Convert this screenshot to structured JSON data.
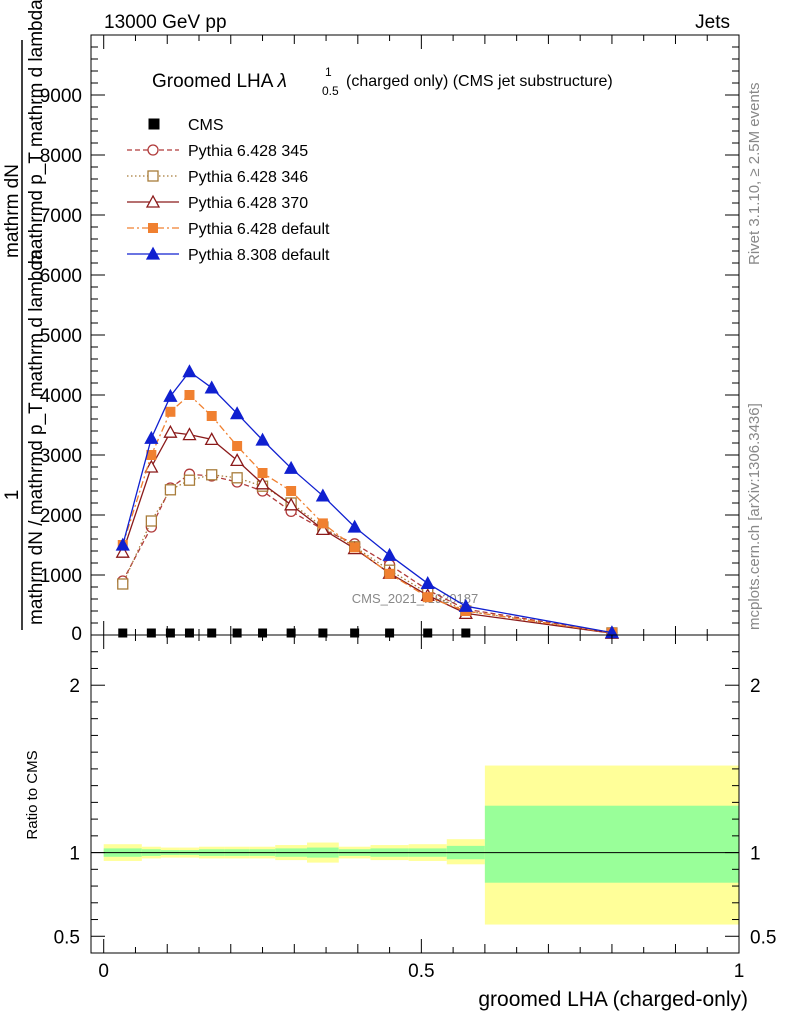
{
  "header": {
    "left": "13000 GeV pp",
    "right": "Jets"
  },
  "side_text": {
    "top": "Rivet 3.1.10, ≥ 2.5M events",
    "bottom": "mcplots.cern.ch [arXiv:1306.3436]"
  },
  "chart_data": [
    {
      "type": "line",
      "title_main": "Groomed LHA ",
      "title_lambda": "λ",
      "title_sup": "1",
      "title_sub": "0.5",
      "title_rest": "  (charged only) (CMS jet substructure)",
      "ylabel_top": "1",
      "ylabel_main": "mathrm dN / mathrmd p_T mathrm d lambda",
      "ylabel_num": "mathrm dN",
      "ylabel_den": "mathrmd p_T mathrm d lambda",
      "ylabel_sub": "T",
      "watermark": "CMS_2021_I1920187",
      "ylim": [
        0,
        10000
      ],
      "yticks": [
        1000,
        2000,
        3000,
        4000,
        5000,
        6000,
        7000,
        8000,
        9000
      ],
      "ytick_labels": [
        "1000",
        "2000",
        "3000",
        "4000",
        "5000",
        "6000",
        "7000",
        "8000",
        "9000"
      ],
      "xlim": [
        -0.02,
        1.0
      ],
      "legend_position": "top-left",
      "series": [
        {
          "name": "CMS",
          "style": "data-square",
          "color": "#000000",
          "x": [
            0.03,
            0.075,
            0.105,
            0.135,
            0.17,
            0.21,
            0.25,
            0.295,
            0.345,
            0.395,
            0.45,
            0.51,
            0.57
          ],
          "y": [
            0,
            0,
            0,
            0,
            0,
            0,
            0,
            0,
            0,
            0,
            0,
            0,
            0
          ]
        },
        {
          "name": "Pythia 6.428 345",
          "style": "dashed-open-circle",
          "color": "#b03a3a",
          "x": [
            0.03,
            0.075,
            0.105,
            0.135,
            0.17,
            0.21,
            0.25,
            0.295,
            0.345,
            0.395,
            0.45,
            0.51,
            0.57,
            0.8
          ],
          "y": [
            900,
            1800,
            2450,
            2680,
            2650,
            2550,
            2400,
            2060,
            1760,
            1520,
            1170,
            750,
            430,
            40
          ]
        },
        {
          "name": "Pythia 6.428 346",
          "style": "dotted-open-square",
          "color": "#a87c3a",
          "x": [
            0.03,
            0.075,
            0.105,
            0.135,
            0.17,
            0.21,
            0.25,
            0.295,
            0.345,
            0.395,
            0.45,
            0.51,
            0.57,
            0.8
          ],
          "y": [
            850,
            1900,
            2420,
            2580,
            2670,
            2620,
            2480,
            2200,
            1800,
            1470,
            1080,
            700,
            400,
            35
          ]
        },
        {
          "name": "Pythia 6.428 370",
          "style": "solid-open-triangle",
          "color": "#8b1a1a",
          "x": [
            0.03,
            0.075,
            0.105,
            0.135,
            0.17,
            0.21,
            0.25,
            0.295,
            0.345,
            0.395,
            0.45,
            0.51,
            0.57,
            0.8
          ],
          "y": [
            1380,
            2800,
            3380,
            3340,
            3260,
            2910,
            2520,
            2170,
            1760,
            1440,
            1030,
            660,
            360,
            30
          ]
        },
        {
          "name": "Pythia 6.428 default",
          "style": "dashdot-filled-square",
          "color": "#f08030",
          "x": [
            0.03,
            0.075,
            0.105,
            0.135,
            0.17,
            0.21,
            0.25,
            0.295,
            0.345,
            0.395,
            0.45,
            0.51,
            0.57,
            0.8
          ],
          "y": [
            1500,
            3000,
            3720,
            4000,
            3650,
            3150,
            2700,
            2400,
            1860,
            1460,
            1020,
            630,
            400,
            35
          ]
        },
        {
          "name": "Pythia 8.308 default",
          "style": "solid-filled-triangle",
          "color": "#1020d0",
          "x": [
            0.03,
            0.075,
            0.105,
            0.135,
            0.17,
            0.21,
            0.25,
            0.295,
            0.345,
            0.395,
            0.45,
            0.51,
            0.57,
            0.8
          ],
          "y": [
            1500,
            3280,
            3980,
            4390,
            4120,
            3690,
            3250,
            2780,
            2320,
            1800,
            1330,
            860,
            480,
            40
          ]
        }
      ]
    },
    {
      "type": "area",
      "ylabel": "Ratio to CMS",
      "xlabel": "groomed LHA (charged-only)",
      "ylim": [
        0.4,
        2.3
      ],
      "yticks": [
        0.5,
        1,
        2
      ],
      "ytick_labels": [
        "0.5",
        "1",
        "2"
      ],
      "xlim": [
        -0.02,
        1.0
      ],
      "xticks": [
        0,
        0.5,
        1
      ],
      "xtick_labels": [
        "0",
        "0.5",
        "1"
      ],
      "reference_line": 1.0,
      "bins": [
        {
          "lo": 0.0,
          "hi": 0.06,
          "stat_lo": 0.975,
          "stat_hi": 1.025,
          "tot_lo": 0.95,
          "tot_hi": 1.05
        },
        {
          "lo": 0.06,
          "hi": 0.09,
          "stat_lo": 0.98,
          "stat_hi": 1.02,
          "tot_lo": 0.965,
          "tot_hi": 1.035
        },
        {
          "lo": 0.09,
          "hi": 0.12,
          "stat_lo": 0.985,
          "stat_hi": 1.015,
          "tot_lo": 0.97,
          "tot_hi": 1.03
        },
        {
          "lo": 0.12,
          "hi": 0.15,
          "stat_lo": 0.985,
          "stat_hi": 1.015,
          "tot_lo": 0.97,
          "tot_hi": 1.03
        },
        {
          "lo": 0.15,
          "hi": 0.19,
          "stat_lo": 0.98,
          "stat_hi": 1.02,
          "tot_lo": 0.965,
          "tot_hi": 1.035
        },
        {
          "lo": 0.19,
          "hi": 0.23,
          "stat_lo": 0.98,
          "stat_hi": 1.02,
          "tot_lo": 0.965,
          "tot_hi": 1.035
        },
        {
          "lo": 0.23,
          "hi": 0.27,
          "stat_lo": 0.98,
          "stat_hi": 1.02,
          "tot_lo": 0.965,
          "tot_hi": 1.035
        },
        {
          "lo": 0.27,
          "hi": 0.32,
          "stat_lo": 0.975,
          "stat_hi": 1.025,
          "tot_lo": 0.955,
          "tot_hi": 1.045
        },
        {
          "lo": 0.32,
          "hi": 0.37,
          "stat_lo": 0.97,
          "stat_hi": 1.03,
          "tot_lo": 0.94,
          "tot_hi": 1.06
        },
        {
          "lo": 0.37,
          "hi": 0.42,
          "stat_lo": 0.98,
          "stat_hi": 1.02,
          "tot_lo": 0.965,
          "tot_hi": 1.035
        },
        {
          "lo": 0.42,
          "hi": 0.48,
          "stat_lo": 0.975,
          "stat_hi": 1.025,
          "tot_lo": 0.955,
          "tot_hi": 1.045
        },
        {
          "lo": 0.48,
          "hi": 0.54,
          "stat_lo": 0.975,
          "stat_hi": 1.025,
          "tot_lo": 0.95,
          "tot_hi": 1.05
        },
        {
          "lo": 0.54,
          "hi": 0.6,
          "stat_lo": 0.96,
          "stat_hi": 1.04,
          "tot_lo": 0.93,
          "tot_hi": 1.08
        },
        {
          "lo": 0.6,
          "hi": 1.0,
          "stat_lo": 0.82,
          "stat_hi": 1.28,
          "tot_lo": 0.57,
          "tot_hi": 1.52
        }
      ],
      "colors": {
        "stat": "#99ff99",
        "total": "#ffff99"
      }
    }
  ]
}
